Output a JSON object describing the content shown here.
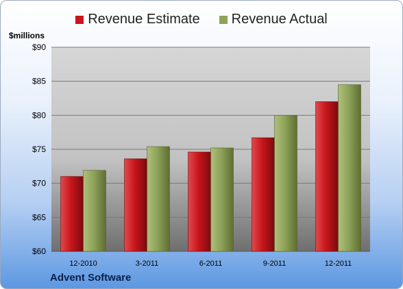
{
  "chart_data": {
    "type": "bar",
    "title": "",
    "ylabel": "$millions",
    "footer": "Advent Software",
    "categories": [
      "12-2010",
      "3-2011",
      "6-2011",
      "9-2011",
      "12-2011"
    ],
    "series": [
      {
        "name": "Revenue Estimate",
        "color": "#c8161c",
        "values": [
          71.0,
          73.6,
          74.6,
          76.7,
          82.0
        ]
      },
      {
        "name": "Revenue Actual",
        "color": "#8fa35a",
        "values": [
          71.9,
          75.4,
          75.2,
          80.0,
          84.5
        ]
      }
    ],
    "ylim": [
      60,
      90
    ],
    "yticks": [
      60,
      65,
      70,
      75,
      80,
      85,
      90
    ],
    "ytick_labels": [
      "$60",
      "$65",
      "$70",
      "$75",
      "$80",
      "$85",
      "$90"
    ],
    "grid": true,
    "legend_position": "top"
  }
}
